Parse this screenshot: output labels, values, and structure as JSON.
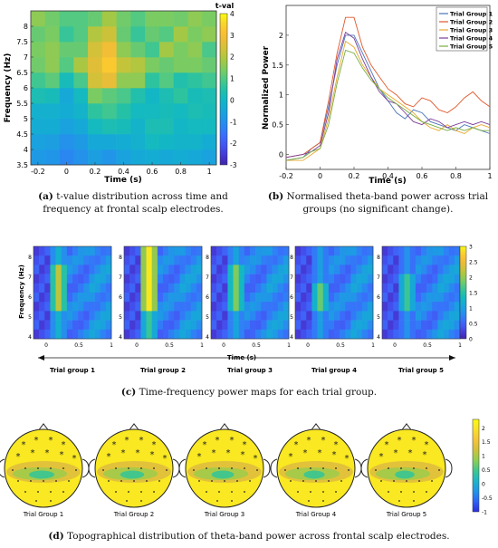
{
  "colors": {
    "parula": [
      "#3e26a8",
      "#4538d4",
      "#4353f0",
      "#3b6bfb",
      "#2c85f4",
      "#1e9ae5",
      "#16aad6",
      "#13b8c2",
      "#25c1a6",
      "#4dc887",
      "#78cc64",
      "#a3c845",
      "#c8c33a",
      "#e7bd38",
      "#fbc033",
      "#f9d62b",
      "#f9fb0e"
    ],
    "topo_cmap": [
      "#2b2ce0",
      "#2f62f7",
      "#1e95e8",
      "#1cb5c7",
      "#3fc68f",
      "#8ccf53",
      "#cfc23a",
      "#f6c33a",
      "#f9e02a",
      "#f9fb0e"
    ],
    "series": [
      "#4a73b9",
      "#e0572a",
      "#e9a82e",
      "#7b3f9b",
      "#79ad3e"
    ]
  },
  "panel_a": {
    "caption_label": "(a)",
    "caption_text": "t-value distribution across time and frequency at frontal scalp electrodes.",
    "chart_data": {
      "type": "heatmap",
      "ylabel": "Frequency (Hz)",
      "xlabel": "Time (s)",
      "colorbar_title": "t-val",
      "x_ticks": [
        "-0.2",
        "0",
        "0.2",
        "0.4",
        "0.6",
        "0.8",
        "1"
      ],
      "y_ticks": [
        "3.5",
        "4",
        "4.5",
        "5",
        "5.5",
        "6",
        "6.5",
        "7",
        "7.5",
        "8"
      ],
      "cbar_ticks": [
        "4",
        "3",
        "2",
        "1",
        "0",
        "-1",
        "-2",
        "-3"
      ],
      "xlim": [
        -0.25,
        1.05
      ],
      "ylim": [
        3.5,
        8.5
      ],
      "clim": [
        -3,
        4
      ],
      "x_bins": [
        -0.25,
        -0.15,
        -0.05,
        0.05,
        0.15,
        0.25,
        0.35,
        0.45,
        0.55,
        0.65,
        0.75,
        0.85,
        0.95,
        1.05
      ],
      "y_bins": [
        3.5,
        4.0,
        4.5,
        5.0,
        5.5,
        6.0,
        6.5,
        7.0,
        7.5,
        8.0,
        8.5
      ],
      "values": [
        [
          -0.8,
          -0.9,
          -1.2,
          -1.0,
          -0.7,
          -0.9,
          -0.6,
          -0.4,
          -0.3,
          -0.4,
          -0.3,
          -0.4,
          -0.6
        ],
        [
          -0.6,
          -0.7,
          -1.0,
          -0.8,
          -0.4,
          -0.4,
          -0.3,
          -0.2,
          0.1,
          0.0,
          -0.1,
          -0.1,
          -0.3
        ],
        [
          -0.3,
          -0.3,
          -0.6,
          -0.4,
          0.1,
          0.3,
          0.2,
          -0.1,
          0.3,
          0.3,
          0.0,
          0.1,
          0.1
        ],
        [
          -0.2,
          -0.2,
          -0.3,
          -0.1,
          0.6,
          0.8,
          0.5,
          0.1,
          0.1,
          0.2,
          0.1,
          0.3,
          0.2
        ],
        [
          0.3,
          0.2,
          -0.4,
          0.1,
          1.4,
          1.1,
          0.9,
          0.4,
          0.0,
          0.3,
          0.6,
          0.2,
          0.3
        ],
        [
          0.8,
          1.1,
          0.2,
          0.9,
          2.4,
          2.7,
          1.6,
          1.6,
          0.6,
          1.0,
          0.4,
          0.6,
          0.8
        ],
        [
          1.3,
          1.6,
          1.0,
          1.9,
          2.6,
          3.3,
          2.2,
          2.0,
          1.4,
          1.2,
          1.4,
          1.4,
          1.2
        ],
        [
          1.4,
          1.6,
          1.2,
          1.2,
          2.4,
          2.9,
          1.6,
          1.2,
          0.8,
          1.8,
          1.4,
          1.6,
          0.9
        ],
        [
          1.2,
          1.4,
          0.7,
          1.0,
          2.0,
          2.3,
          1.2,
          0.7,
          1.2,
          1.0,
          1.8,
          1.4,
          1.6
        ],
        [
          1.6,
          1.3,
          1.0,
          1.0,
          1.2,
          1.8,
          1.3,
          1.0,
          1.4,
          1.4,
          1.3,
          1.6,
          1.4
        ]
      ]
    }
  },
  "panel_b": {
    "caption_label": "(b)",
    "caption_text": "Normalised theta-band power across trial groups (no significant change).",
    "chart_data": {
      "type": "line",
      "ylabel": "Normalized Power",
      "xlabel": "Time (s)",
      "xlim": [
        -0.2,
        1.0
      ],
      "ylim": [
        -0.25,
        2.5
      ],
      "x_ticks": [
        "-0.2",
        "0",
        "0.2",
        "0.4",
        "0.6",
        "0.8",
        "1"
      ],
      "y_ticks": [
        "0",
        "0.5",
        "1",
        "1.5",
        "2"
      ],
      "legend_position": "top-right",
      "x": [
        -0.2,
        -0.1,
        -0.05,
        0.0,
        0.05,
        0.1,
        0.15,
        0.2,
        0.25,
        0.3,
        0.35,
        0.4,
        0.45,
        0.5,
        0.55,
        0.6,
        0.65,
        0.7,
        0.75,
        0.8,
        0.85,
        0.9,
        0.95,
        1.0
      ],
      "series": [
        {
          "name": "Trial Group 1",
          "values": [
            -0.1,
            -0.05,
            0.1,
            0.2,
            0.8,
            1.5,
            2.0,
            2.0,
            1.7,
            1.4,
            1.1,
            0.9,
            0.7,
            0.6,
            0.75,
            0.7,
            0.55,
            0.5,
            0.45,
            0.4,
            0.5,
            0.45,
            0.4,
            0.35
          ]
        },
        {
          "name": "Trial Group 2",
          "values": [
            -0.05,
            0.0,
            0.1,
            0.2,
            0.9,
            1.7,
            2.3,
            2.3,
            1.8,
            1.5,
            1.3,
            1.1,
            1.0,
            0.85,
            0.8,
            0.95,
            0.9,
            0.75,
            0.7,
            0.8,
            0.95,
            1.05,
            0.9,
            0.8
          ]
        },
        {
          "name": "Trial Group 3",
          "values": [
            -0.1,
            -0.1,
            0.0,
            0.1,
            0.6,
            1.3,
            1.9,
            1.8,
            1.5,
            1.3,
            1.1,
            1.0,
            0.9,
            0.8,
            0.7,
            0.55,
            0.45,
            0.4,
            0.5,
            0.4,
            0.35,
            0.45,
            0.5,
            0.45
          ]
        },
        {
          "name": "Trial Group 4",
          "values": [
            -0.05,
            0.0,
            0.05,
            0.15,
            0.7,
            1.6,
            2.05,
            1.95,
            1.6,
            1.3,
            1.05,
            0.9,
            0.85,
            0.7,
            0.55,
            0.5,
            0.6,
            0.55,
            0.45,
            0.5,
            0.55,
            0.5,
            0.55,
            0.5
          ]
        },
        {
          "name": "Trial Group 5",
          "values": [
            -0.1,
            -0.05,
            0.05,
            0.1,
            0.5,
            1.2,
            1.75,
            1.7,
            1.45,
            1.25,
            1.1,
            0.95,
            0.85,
            0.75,
            0.65,
            0.55,
            0.5,
            0.45,
            0.4,
            0.45,
            0.4,
            0.45,
            0.4,
            0.4
          ]
        }
      ]
    }
  },
  "panel_c": {
    "caption_label": "(c)",
    "caption_text": "Time-frequency power maps for each trial group.",
    "ylabel": "Frequency (Hz)",
    "xlabel": "Time (s)",
    "y_ticks": [
      "8",
      "7",
      "6",
      "5",
      "4"
    ],
    "x_ticks": [
      "0",
      "0.5",
      "1"
    ],
    "cbar_ticks": [
      "3",
      "2.5",
      "2",
      "1.5",
      "1",
      "0.5",
      "0"
    ],
    "clim": [
      0,
      3
    ],
    "chart_data": [
      {
        "type": "heatmap",
        "name": "Trial group 1",
        "peak": 2.2,
        "peak_freq_rows": [
          2,
          6
        ]
      },
      {
        "type": "heatmap",
        "name": "Trial group 2",
        "peak": 2.9,
        "peak_freq_rows": [
          0,
          6
        ]
      },
      {
        "type": "heatmap",
        "name": "Trial group 3",
        "peak": 1.9,
        "peak_freq_rows": [
          2,
          6
        ]
      },
      {
        "type": "heatmap",
        "name": "Trial group 4",
        "peak": 1.8,
        "peak_freq_rows": [
          4,
          6
        ]
      },
      {
        "type": "heatmap",
        "name": "Trial group 5",
        "peak": 1.6,
        "peak_freq_rows": [
          3,
          6
        ]
      }
    ]
  },
  "panel_d": {
    "caption_label": "(d)",
    "caption_text": "Topographical distribution of theta-band power across frontal scalp electrodes.",
    "cbar_ticks": [
      "2",
      "1.5",
      "1",
      "0.5",
      "0",
      "-0.5",
      "-1"
    ],
    "clim": [
      -1,
      2.3
    ],
    "maps": [
      {
        "name": "Trial Group 1"
      },
      {
        "name": "Trial Group 2"
      },
      {
        "name": "Trial Group 3"
      },
      {
        "name": "Trial Group 4"
      },
      {
        "name": "Trial Group 5"
      }
    ]
  }
}
